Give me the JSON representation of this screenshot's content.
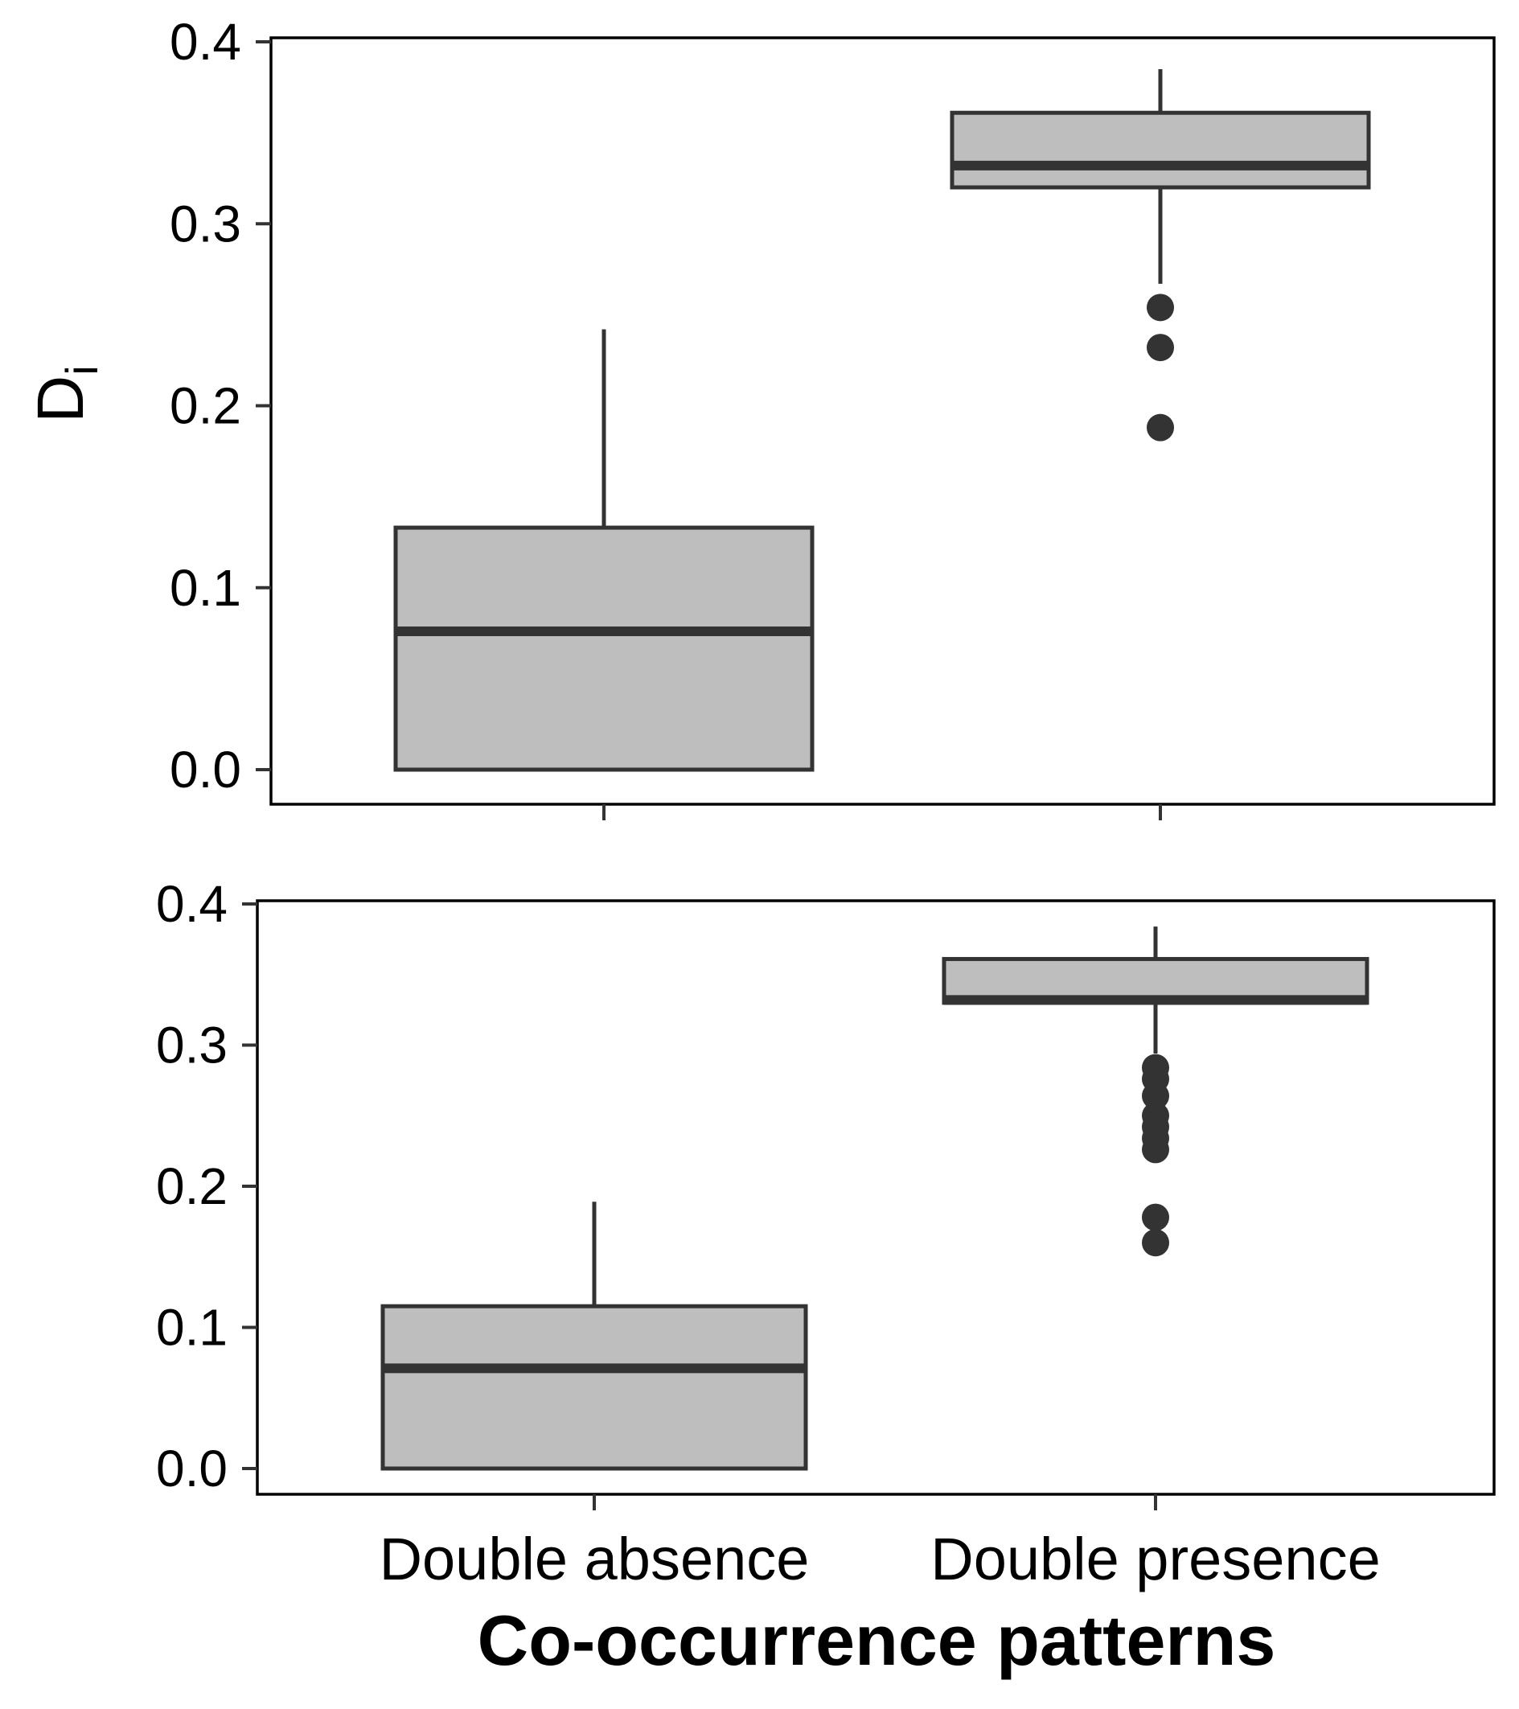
{
  "chart_data": [
    {
      "type": "boxplot",
      "panel": "top",
      "ylabel": "D",
      "ylabel_subscript": "i",
      "ylim": [
        -0.02,
        0.4
      ],
      "yticks": [
        "0.0",
        "0.1",
        "0.2",
        "0.3",
        "0.4"
      ],
      "categories": [
        "Double absence",
        "Double presence"
      ],
      "boxes": [
        {
          "category": "Double absence",
          "lower_whisker": 0.0,
          "q1": 0.0,
          "median": 0.076,
          "q3": 0.133,
          "upper_whisker": 0.242,
          "outliers": []
        },
        {
          "category": "Double presence",
          "lower_whisker": 0.267,
          "q1": 0.32,
          "median": 0.332,
          "q3": 0.361,
          "upper_whisker": 0.385,
          "outliers": [
            0.254,
            0.232,
            0.188
          ]
        }
      ]
    },
    {
      "type": "boxplot",
      "panel": "bottom",
      "ylim": [
        -0.018,
        0.4
      ],
      "yticks": [
        "0.0",
        "0.1",
        "0.2",
        "0.3",
        "0.4"
      ],
      "categories": [
        "Double absence",
        "Double presence"
      ],
      "boxes": [
        {
          "category": "Double absence",
          "lower_whisker": 0.0,
          "q1": 0.0,
          "median": 0.071,
          "q3": 0.115,
          "upper_whisker": 0.189,
          "outliers": []
        },
        {
          "category": "Double presence",
          "lower_whisker": 0.294,
          "q1": 0.33,
          "median": 0.332,
          "q3": 0.361,
          "upper_whisker": 0.384,
          "outliers": [
            0.284,
            0.276,
            0.264,
            0.25,
            0.242,
            0.234,
            0.226,
            0.178,
            0.16
          ]
        }
      ]
    }
  ],
  "xlabel": "Co-occurrence patterns",
  "colors": {
    "box_fill": "#bebebe",
    "stroke": "#333333",
    "outlier": "#333333"
  }
}
